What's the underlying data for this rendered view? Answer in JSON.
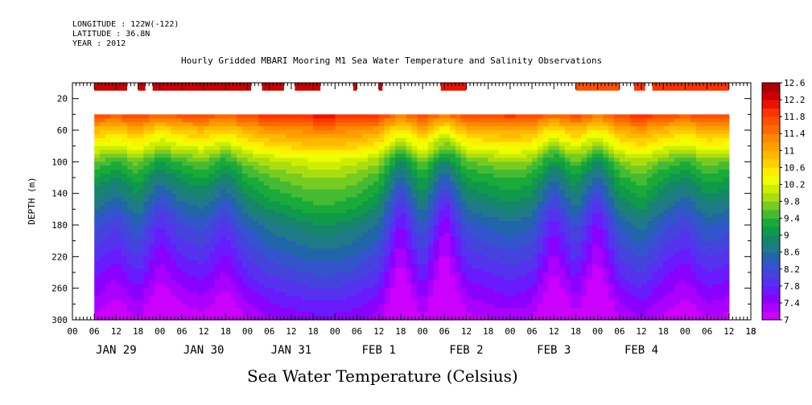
{
  "header": {
    "longitude": "LONGITUDE : 122W(-122)",
    "latitude": "LATITUDE : 36.8N",
    "year": "YEAR : 2012"
  },
  "chart_data": {
    "type": "heatmap",
    "title": "Hourly Gridded MBARI Mooring M1 Sea Water Temperature and Salinity Observations",
    "subtitle": "Sea Water Temperature (Celsius)",
    "ylabel": "DEPTH (m)",
    "xlabel": "",
    "y_reversed": true,
    "ylim": [
      300,
      0
    ],
    "y_ticks": [
      20,
      60,
      100,
      140,
      180,
      220,
      260,
      300
    ],
    "x_hour_range": [
      0,
      168
    ],
    "x_hour_ticks": [
      "00",
      "06",
      "12",
      "18",
      "00",
      "06",
      "12",
      "18",
      "00",
      "06",
      "12",
      "18",
      "00",
      "06",
      "12",
      "18",
      "00",
      "06",
      "12",
      "18",
      "00",
      "06",
      "12",
      "18",
      "00",
      "06",
      "12",
      "18",
      "00",
      "06",
      "12",
      "18",
      "18"
    ],
    "x_hour_tick_values": [
      0,
      6,
      12,
      18,
      24,
      30,
      36,
      42,
      48,
      54,
      60,
      66,
      72,
      78,
      84,
      90,
      96,
      102,
      108,
      114,
      120,
      126,
      132,
      138,
      144,
      150,
      156,
      162,
      168,
      174,
      180,
      186,
      186
    ],
    "x_day_labels": [
      "JAN 29",
      "JAN 30",
      "JAN 31",
      "FEB  1",
      "FEB  2",
      "FEB  3",
      "FEB  4"
    ],
    "x_day_label_hours": [
      12,
      36,
      60,
      84,
      108,
      132,
      156
    ],
    "colorbar": {
      "levels": [
        7,
        7.2,
        7.4,
        7.6,
        7.8,
        8,
        8.2,
        8.4,
        8.6,
        8.8,
        9,
        9.2,
        9.4,
        9.6,
        9.8,
        10,
        10.2,
        10.4,
        10.6,
        10.8,
        11,
        11.2,
        11.4,
        11.6,
        11.8,
        12,
        12.2,
        12.4,
        12.6
      ],
      "labels": [
        "7",
        "7.4",
        "7.8",
        "8.2",
        "8.6",
        "9",
        "9.4",
        "9.8",
        "10.2",
        "10.6",
        "11",
        "11.4",
        "11.8",
        "12.2",
        "12.6"
      ],
      "colors": [
        "#cc00ff",
        "#aa00ff",
        "#8a00ff",
        "#6a1aff",
        "#5533ee",
        "#4444dd",
        "#3355cc",
        "#2266aa",
        "#1f7a88",
        "#16866a",
        "#0f9a4a",
        "#1aaa3a",
        "#44bb33",
        "#77cc22",
        "#aadd11",
        "#ccee00",
        "#eeff00",
        "#ffee00",
        "#ffd000",
        "#ffb800",
        "#ffa000",
        "#ff8800",
        "#ff6a00",
        "#ff5000",
        "#ff3300",
        "#ee1100",
        "#cc0000",
        "#aa0000"
      ]
    },
    "data_start_hour": 6,
    "data_end_hour": 180,
    "profile_depths": [
      40,
      60,
      80,
      100,
      120,
      140,
      160,
      180,
      200,
      220,
      240,
      260,
      280,
      300
    ],
    "base_profile": [
      11.8,
      10.9,
      10.3,
      9.6,
      9.2,
      8.9,
      8.6,
      8.3,
      8.1,
      7.9,
      7.7,
      7.5,
      7.3,
      7.1
    ],
    "near_surface_segments": [
      {
        "start": 6,
        "end": 15,
        "value": 12.3
      },
      {
        "start": 18,
        "end": 20,
        "value": 12.3
      },
      {
        "start": 22,
        "end": 49,
        "value": 12.3
      },
      {
        "start": 52,
        "end": 58,
        "value": 12.3
      },
      {
        "start": 61,
        "end": 68,
        "value": 12.3
      },
      {
        "start": 77,
        "end": 78,
        "value": 12.3
      },
      {
        "start": 84,
        "end": 85,
        "value": 12.3
      },
      {
        "start": 101,
        "end": 108,
        "value": 12.1
      },
      {
        "start": 138,
        "end": 150,
        "value": 11.6
      },
      {
        "start": 154,
        "end": 157,
        "value": 11.8
      },
      {
        "start": 159,
        "end": 180,
        "value": 11.8
      }
    ],
    "day_anomalies": [
      {
        "hour": 6,
        "value": 0.0
      },
      {
        "hour": 12,
        "value": -0.2
      },
      {
        "hour": 18,
        "value": 0.1
      },
      {
        "hour": 24,
        "value": -0.4
      },
      {
        "hour": 30,
        "value": -0.1
      },
      {
        "hour": 36,
        "value": 0.0
      },
      {
        "hour": 42,
        "value": -0.3
      },
      {
        "hour": 48,
        "value": 0.1
      },
      {
        "hour": 54,
        "value": 0.3
      },
      {
        "hour": 60,
        "value": 0.4
      },
      {
        "hour": 66,
        "value": 0.5
      },
      {
        "hour": 72,
        "value": 0.5
      },
      {
        "hour": 78,
        "value": 0.4
      },
      {
        "hour": 84,
        "value": 0.2
      },
      {
        "hour": 90,
        "value": -0.6
      },
      {
        "hour": 96,
        "value": 0.1
      },
      {
        "hour": 102,
        "value": -0.7
      },
      {
        "hour": 108,
        "value": 0.0
      },
      {
        "hour": 114,
        "value": 0.1
      },
      {
        "hour": 120,
        "value": 0.2
      },
      {
        "hour": 126,
        "value": 0.1
      },
      {
        "hour": 132,
        "value": -0.5
      },
      {
        "hour": 138,
        "value": 0.0
      },
      {
        "hour": 144,
        "value": -0.6
      },
      {
        "hour": 150,
        "value": 0.1
      },
      {
        "hour": 156,
        "value": 0.3
      },
      {
        "hour": 162,
        "value": 0.0
      },
      {
        "hour": 168,
        "value": -0.2
      },
      {
        "hour": 174,
        "value": 0.1
      },
      {
        "hour": 180,
        "value": 0.0
      }
    ]
  }
}
